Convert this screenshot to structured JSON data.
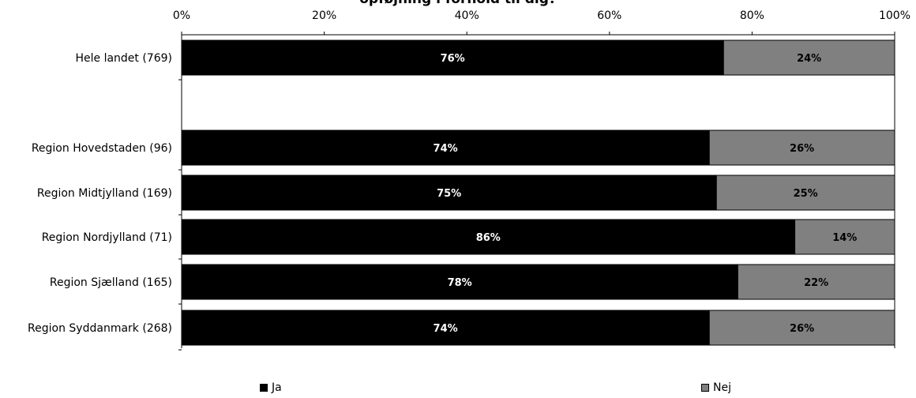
{
  "chart_data": {
    "type": "bar",
    "orientation": "horizontal",
    "stacked": true,
    "title": "opføjning i forhold til dig?",
    "categories": [
      "Hele landet (769)",
      "",
      "Region Hovedstaden (96)",
      "Region Midtjylland (169)",
      "Region Nordjylland (71)",
      "Region Sjælland (165)",
      "Region Syddanmark (268)"
    ],
    "series": [
      {
        "name": "Ja",
        "color": "#000000",
        "label_color": "#ffffff",
        "values": [
          76,
          null,
          74,
          75,
          86,
          78,
          74
        ],
        "labels": [
          "76%",
          "",
          "74%",
          "75%",
          "86%",
          "78%",
          "74%"
        ]
      },
      {
        "name": "Nej",
        "color": "#808080",
        "label_color": "#000000",
        "values": [
          24,
          null,
          26,
          25,
          14,
          22,
          26
        ],
        "labels": [
          "24%",
          "",
          "26%",
          "25%",
          "14%",
          "22%",
          "26%"
        ]
      }
    ],
    "xlim": [
      0,
      100
    ],
    "xticks": [
      0,
      20,
      40,
      60,
      80,
      100
    ],
    "xtick_labels": [
      "0%",
      "20%",
      "40%",
      "60%",
      "80%",
      "100%"
    ],
    "xaxis_position": "top",
    "grid": false,
    "legend_position": "bottom"
  }
}
